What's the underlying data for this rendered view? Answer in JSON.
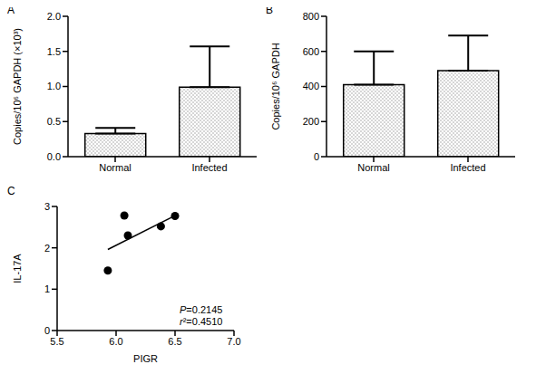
{
  "chart_data": [
    {
      "type": "bar",
      "title": "A",
      "categories": [
        "Normal",
        "Infected"
      ],
      "values": [
        0.33,
        0.99
      ],
      "errors": [
        0.08,
        0.58
      ],
      "ylabel": "Copies/10⁶ GAPDH (×10³)",
      "ylim": [
        0,
        2
      ],
      "yticks": [
        {
          "value": 0,
          "label": "0.0"
        },
        {
          "value": 0.5,
          "label": "0.5"
        },
        {
          "value": 1,
          "label": "1.0"
        },
        {
          "value": 1.5,
          "label": "1.5"
        },
        {
          "value": 2,
          "label": "2.0"
        }
      ],
      "color": "#9a9a9a",
      "grid": false
    },
    {
      "type": "bar",
      "title": "B",
      "categories": [
        "Normal",
        "Infected"
      ],
      "values": [
        410,
        490
      ],
      "errors": [
        190,
        200
      ],
      "ylabel": "Copies/10⁶ GAPDH",
      "ylim": [
        0,
        800
      ],
      "yticks": [
        0,
        200,
        400,
        600,
        800
      ],
      "color": "#9a9a9a",
      "grid": false
    },
    {
      "type": "scatter",
      "title": "C",
      "x": [
        5.93,
        6.07,
        6.1,
        6.38,
        6.5
      ],
      "values": [
        1.45,
        2.78,
        2.3,
        2.52,
        2.77
      ],
      "xlabel": "PIGR",
      "ylabel": "IL-17A",
      "xlim": [
        5.5,
        7
      ],
      "xticks": [
        5.5,
        {
          "value": 6,
          "label": "6.0"
        },
        6.5,
        {
          "value": 7,
          "label": "7.0"
        }
      ],
      "ylim": [
        0,
        3
      ],
      "yticks": [
        0,
        1,
        2,
        3
      ],
      "fit_line": {
        "x": [
          5.93,
          6.5
        ],
        "y": [
          1.96,
          2.78
        ]
      },
      "annotations": [
        "P=0.2145",
        "r²=0.4510"
      ],
      "color": "#000000",
      "marker": "circle",
      "grid": false
    }
  ]
}
